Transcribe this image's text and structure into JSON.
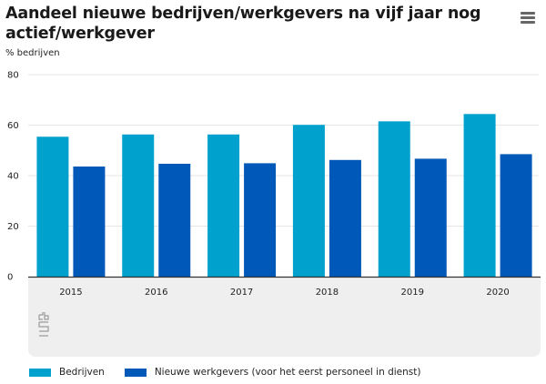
{
  "header": {
    "title": "Aandeel nieuwe bedrijven/werkgevers na vijf jaar nog actief/werkgever",
    "subtitle": "% bedrijven",
    "menu_icon": "hamburger-menu-icon"
  },
  "logo": {
    "icon": "cbs-logo-icon"
  },
  "colors": {
    "bedrijven": "#00A1CD",
    "werkgevers": "#0058B8",
    "gridline": "#e6e6e6",
    "axis": "#333333",
    "band": "#efefef"
  },
  "chart_data": {
    "type": "bar",
    "title": "Aandeel nieuwe bedrijven/werkgevers na vijf jaar nog actief/werkgever",
    "xlabel": "",
    "ylabel": "% bedrijven",
    "categories": [
      "2015",
      "2016",
      "2017",
      "2018",
      "2019",
      "2020"
    ],
    "series": [
      {
        "name": "Bedrijven",
        "color": "#00A1CD",
        "values": [
          55.4,
          56.3,
          56.3,
          60.1,
          61.5,
          64.4
        ]
      },
      {
        "name": "Nieuwe werkgevers (voor het eerst personeel in dienst)",
        "color": "#0058B8",
        "values": [
          43.6,
          44.7,
          44.9,
          46.2,
          46.7,
          48.5
        ]
      }
    ],
    "ylim": [
      0,
      80
    ],
    "yticks": [
      "0",
      "20",
      "40",
      "60",
      "80"
    ],
    "grid": true,
    "legend": "bottom-left"
  }
}
